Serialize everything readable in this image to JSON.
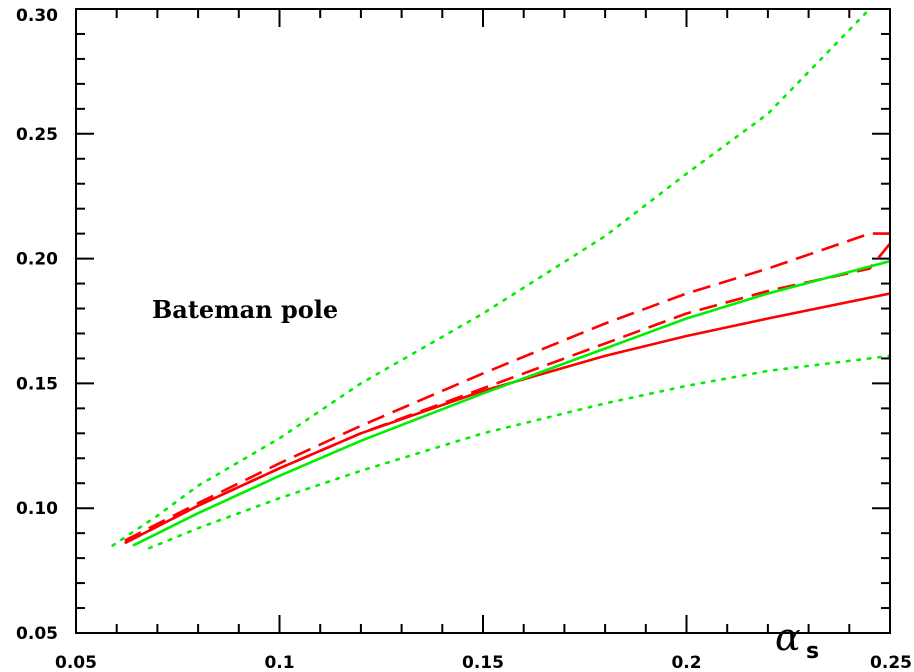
{
  "chart_data": {
    "type": "line",
    "xlabel": "α",
    "xlabel_subscript": "s",
    "ylabel": "",
    "xlim": [
      0.05,
      0.25
    ],
    "ylim": [
      0.05,
      0.3
    ],
    "grid": false,
    "legend": "none",
    "x_ticks": [
      0.05,
      0.1,
      0.15,
      0.2,
      0.25
    ],
    "x_tick_labels": [
      "0.05",
      "0.1",
      "0.15",
      "0.2",
      "0.25"
    ],
    "y_ticks": [
      0.05,
      0.1,
      0.15,
      0.2,
      0.25,
      0.3
    ],
    "y_tick_labels": [
      "0.05",
      "0.10",
      "0.15",
      "0.20",
      "0.25",
      "0.30"
    ],
    "annotations": [
      {
        "text": "Bateman pole",
        "x": 0.068,
        "y": 0.178
      }
    ],
    "series": [
      {
        "color": "#ff0000",
        "style": "solid",
        "x": [
          0.062,
          0.08,
          0.1,
          0.12,
          0.15,
          0.18,
          0.2,
          0.22,
          0.25
        ],
        "y": [
          0.086,
          0.101,
          0.116,
          0.13,
          0.147,
          0.161,
          0.169,
          0.176,
          0.186
        ]
      },
      {
        "color": "#ff0000",
        "style": "dashed",
        "x": [
          0.062,
          0.08,
          0.1,
          0.12,
          0.15,
          0.18,
          0.2,
          0.22,
          0.245,
          0.25
        ],
        "y": [
          0.087,
          0.102,
          0.118,
          0.133,
          0.154,
          0.174,
          0.186,
          0.196,
          0.21,
          0.21
        ]
      },
      {
        "color": "#ff0000",
        "style": "dashed",
        "x": [
          0.062,
          0.08,
          0.1,
          0.12,
          0.15,
          0.18,
          0.2,
          0.22,
          0.245,
          0.25
        ],
        "y": [
          0.086,
          0.101,
          0.116,
          0.13,
          0.148,
          0.166,
          0.178,
          0.187,
          0.196,
          0.206
        ]
      },
      {
        "color": "#00ee00",
        "style": "solid",
        "x": [
          0.064,
          0.08,
          0.1,
          0.12,
          0.15,
          0.18,
          0.2,
          0.22,
          0.25
        ],
        "y": [
          0.085,
          0.098,
          0.113,
          0.127,
          0.146,
          0.164,
          0.176,
          0.186,
          0.199
        ]
      },
      {
        "color": "#00ee00",
        "style": "dotted",
        "x": [
          0.059,
          0.07,
          0.08,
          0.1,
          0.12,
          0.15,
          0.18,
          0.2,
          0.22,
          0.245
        ],
        "y": [
          0.085,
          0.097,
          0.109,
          0.128,
          0.15,
          0.178,
          0.209,
          0.234,
          0.258,
          0.3
        ]
      },
      {
        "color": "#00ee00",
        "style": "dotted",
        "x": [
          0.068,
          0.08,
          0.1,
          0.12,
          0.15,
          0.18,
          0.2,
          0.22,
          0.25
        ],
        "y": [
          0.084,
          0.092,
          0.104,
          0.115,
          0.13,
          0.142,
          0.149,
          0.155,
          0.161
        ]
      }
    ]
  }
}
